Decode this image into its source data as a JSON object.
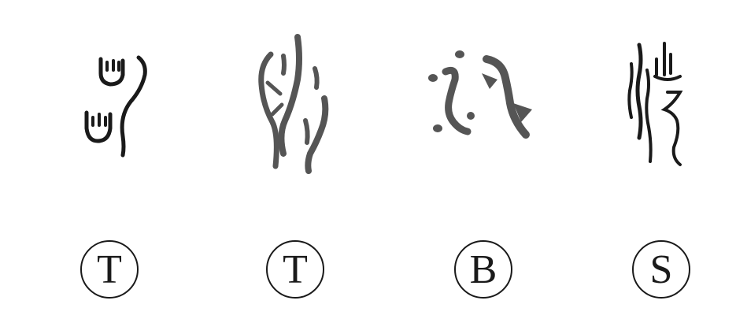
{
  "columns": [
    {
      "glyph_icon": "oracle-bone-script-glyph-icon",
      "label": "T"
    },
    {
      "glyph_icon": "oracle-bone-script-glyph-icon",
      "label": "T"
    },
    {
      "glyph_icon": "bronze-script-glyph-icon",
      "label": "B"
    },
    {
      "glyph_icon": "seal-script-glyph-icon",
      "label": "S"
    }
  ],
  "colors": {
    "ink": "#1a1a1a",
    "stroke_fill": "#555555",
    "background": "#ffffff"
  }
}
